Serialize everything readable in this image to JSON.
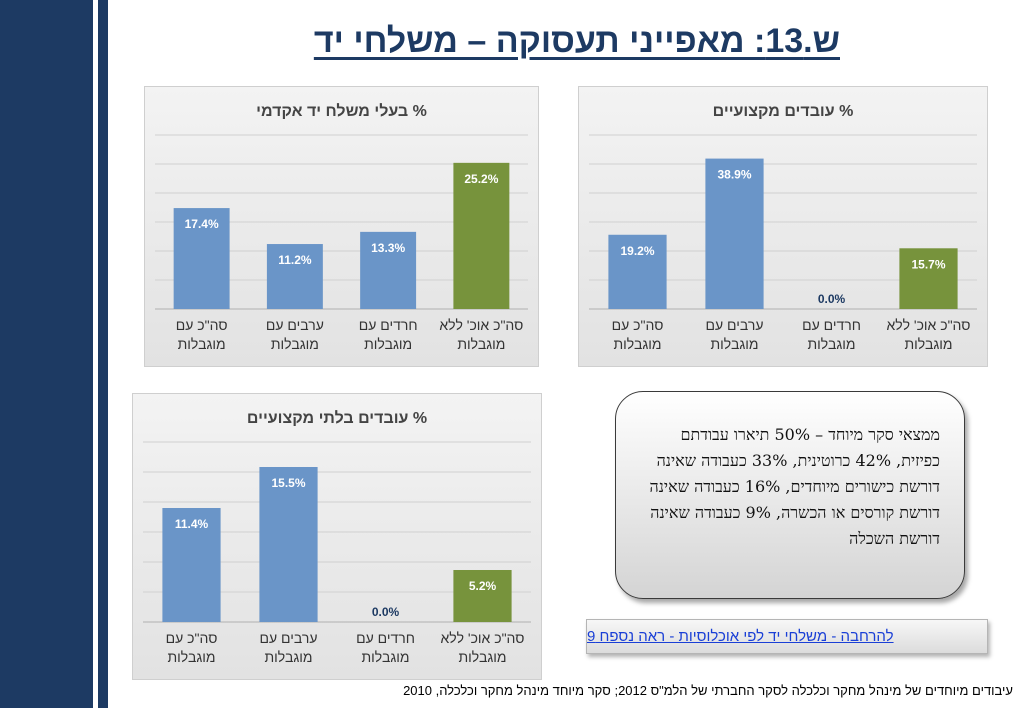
{
  "page": {
    "title": "ש.13: מאפייני תעסוקה – משלחי יד",
    "callout_text": "ממצאי סקר מיוחד – 50% תיארו עבודתם כפיזית, 42% כרוטינית, 33% כעבודה שאינה דורשת כישורים מיוחדים, 16% כעבודה שאינה דורשת קורסים או הכשרה, 9% כעבודה שאינה דורשת השכלה",
    "link_text": "להרחבה - משלחי יד לפי אוכלוסיות - ראה נספח 9",
    "footer": "עיבודים מיוחדים של מינהל מחקר וכלכלה לסקר החברתי של הלמ\"ס 2012;  סקר מיוחד מינהל מחקר וכלכלה, 2010"
  },
  "colors": {
    "bar_blue": "#6a95c8",
    "bar_green": "#77933c",
    "title_navy": "#1d3a63",
    "left_band": "#1d3a63",
    "gridline": "#d0d0d0",
    "axis_text": "#333333"
  },
  "chart_data": [
    {
      "type": "bar",
      "title": "% בעלי משלח יד אקדמי",
      "categories": [
        "סה\"כ עם מוגבלות",
        "ערבים עם מוגבלות",
        "חרדים עם מוגבלות",
        "סה\"כ אוכ' ללא מוגבלות"
      ],
      "values": [
        17.4,
        11.2,
        13.3,
        25.2
      ],
      "data_labels": [
        "17.4%",
        "11.2%",
        "13.3%",
        "25.2%"
      ],
      "bar_colors": [
        "#6a95c8",
        "#6a95c8",
        "#6a95c8",
        "#77933c"
      ],
      "ylim": [
        0,
        30
      ],
      "grid": true,
      "xlabel": "",
      "ylabel": ""
    },
    {
      "type": "bar",
      "title": "% עובדים מקצועיים",
      "categories": [
        "סה\"כ עם מוגבלות",
        "ערבים עם מוגבלות",
        "חרדים עם מוגבלות",
        "סה\"כ אוכ' ללא מוגבלות"
      ],
      "values": [
        19.2,
        38.9,
        0.0,
        15.7
      ],
      "data_labels": [
        "19.2%",
        "38.9%",
        "0.0%",
        "15.7%"
      ],
      "bar_colors": [
        "#6a95c8",
        "#6a95c8",
        "#6a95c8",
        "#77933c"
      ],
      "ylim": [
        0,
        45
      ],
      "grid": true,
      "xlabel": "",
      "ylabel": ""
    },
    {
      "type": "bar",
      "title": "% עובדים בלתי מקצועיים",
      "categories": [
        "סה\"כ עם מוגבלות",
        "ערבים עם מוגבלות",
        "חרדים עם מוגבלות",
        "סה\"כ אוכ' ללא מוגבלות"
      ],
      "values": [
        11.4,
        15.5,
        0.0,
        5.2
      ],
      "data_labels": [
        "11.4%",
        "15.5%",
        "0.0%",
        "5.2%"
      ],
      "bar_colors": [
        "#6a95c8",
        "#6a95c8",
        "#6a95c8",
        "#77933c"
      ],
      "ylim": [
        0,
        18
      ],
      "grid": true,
      "xlabel": "",
      "ylabel": ""
    }
  ]
}
